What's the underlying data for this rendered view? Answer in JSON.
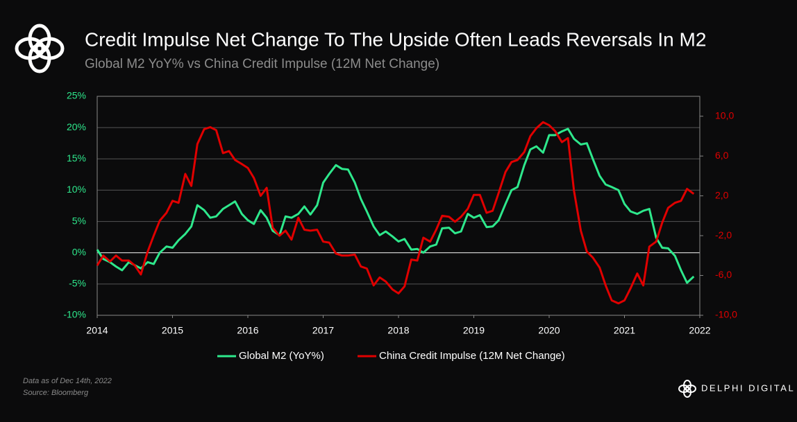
{
  "chart_data": {
    "type": "line",
    "title": "Credit Impulse Net Change To The Upside Often Leads Reversals In M2",
    "subtitle": "Global M2 YoY% vs China Credit Impulse (12M Net Change)",
    "x": [
      2014,
      2014.08,
      2014.17,
      2014.25,
      2014.33,
      2014.42,
      2014.5,
      2014.58,
      2014.67,
      2014.75,
      2014.83,
      2014.92,
      2015,
      2015.08,
      2015.17,
      2015.25,
      2015.33,
      2015.42,
      2015.5,
      2015.58,
      2015.67,
      2015.75,
      2015.83,
      2015.92,
      2016,
      2016.08,
      2016.17,
      2016.25,
      2016.33,
      2016.42,
      2016.5,
      2016.58,
      2016.67,
      2016.75,
      2016.83,
      2016.92,
      2017,
      2017.08,
      2017.17,
      2017.25,
      2017.33,
      2017.42,
      2017.5,
      2017.58,
      2017.67,
      2017.75,
      2017.83,
      2017.92,
      2018,
      2018.08,
      2018.17,
      2018.25,
      2018.33,
      2018.42,
      2018.5,
      2018.58,
      2018.67,
      2018.75,
      2018.83,
      2018.92,
      2019,
      2019.08,
      2019.17,
      2019.25,
      2019.33,
      2019.42,
      2019.5,
      2019.58,
      2019.67,
      2019.75,
      2019.83,
      2019.92,
      2020,
      2020.08,
      2020.17,
      2020.25,
      2020.33,
      2020.42,
      2020.5,
      2020.58,
      2020.67,
      2020.75,
      2020.83,
      2020.92,
      2021,
      2021.08,
      2021.17,
      2021.25,
      2021.33,
      2021.42,
      2021.5,
      2021.58,
      2021.67,
      2021.75,
      2021.83,
      2021.92
    ],
    "series": [
      {
        "name": "Global M2 (YoY%)",
        "color": "#2ee88c",
        "axis": "y",
        "values": [
          0.5,
          -1,
          -1.5,
          -2.2,
          -2.8,
          -1.5,
          -2,
          -2.5,
          -1.5,
          -1.8,
          0,
          1,
          0.8,
          2,
          3,
          4.2,
          7.6,
          6.8,
          5.6,
          5.8,
          7,
          7.6,
          8.2,
          6.2,
          5.2,
          4.6,
          6.8,
          5.6,
          3.5,
          2.8,
          5.8,
          5.6,
          6.2,
          7.4,
          6.1,
          7.6,
          11.2,
          12.6,
          14,
          13.4,
          13.3,
          11.2,
          8.6,
          6.6,
          4.2,
          2.8,
          3.4,
          2.6,
          1.8,
          2.2,
          0.5,
          0.6,
          0,
          1,
          1.3,
          3.9,
          4,
          3.1,
          3.4,
          6.2,
          5.6,
          6,
          4.1,
          4.2,
          5.2,
          7.8,
          10,
          10.5,
          14,
          16.5,
          17,
          16,
          18.8,
          18.8,
          19.4,
          19.8,
          18.2,
          17.3,
          17.5,
          15,
          12.3,
          10.9,
          10.5,
          10,
          7.8,
          6.6,
          6.2,
          6.7,
          7,
          2.4,
          0.8,
          0.7,
          -0.5,
          -2.8,
          -4.8,
          -3.8
        ]
      },
      {
        "name": "China Credit Impulse (12M Net Change)",
        "color": "#e00000",
        "axis": "y2",
        "values": [
          -5,
          -4,
          -4.6,
          -4,
          -4.5,
          -4.5,
          -5,
          -5.9,
          -3.6,
          -2,
          -0.5,
          0.3,
          1.5,
          1.3,
          4.2,
          3,
          7.2,
          8.7,
          8.9,
          8.6,
          6.3,
          6.5,
          5.6,
          5.2,
          4.8,
          3.8,
          2,
          2.8,
          -1.2,
          -2,
          -1.5,
          -2.4,
          -0.2,
          -1.4,
          -1.5,
          -1.4,
          -2.6,
          -2.7,
          -3.8,
          -4,
          -4,
          -3.9,
          -5.1,
          -5.3,
          -7,
          -6.2,
          -6.6,
          -7.4,
          -7.8,
          -7.1,
          -4.4,
          -4.5,
          -2.2,
          -2.6,
          -1.4,
          0,
          -0.1,
          -0.6,
          -0.1,
          0.7,
          2.1,
          2.1,
          0.3,
          0.5,
          2.3,
          4.4,
          5.4,
          5.6,
          6.4,
          8,
          8.8,
          9.4,
          9.1,
          8.5,
          7.4,
          7.8,
          2.5,
          -1.5,
          -3.6,
          -4.2,
          -5.2,
          -7,
          -8.5,
          -8.8,
          -8.5,
          -7.3,
          -5.8,
          -7,
          -3.1,
          -2.6,
          -0.7,
          0.8,
          1.3,
          1.5,
          2.7,
          2.2
        ]
      }
    ],
    "xlim": [
      2014,
      2022
    ],
    "xticks": [
      2014,
      2015,
      2016,
      2017,
      2018,
      2019,
      2020,
      2021,
      2022
    ],
    "ylim": [
      -10,
      25
    ],
    "yticks": [
      {
        "value": -10,
        "label": "-10%"
      },
      {
        "value": -5,
        "label": "-5%"
      },
      {
        "value": 0,
        "label": "0%"
      },
      {
        "value": 5,
        "label": "5%"
      },
      {
        "value": 10,
        "label": "10%"
      },
      {
        "value": 15,
        "label": "15%"
      },
      {
        "value": 20,
        "label": "20%"
      },
      {
        "value": 25,
        "label": "25%"
      }
    ],
    "y2lim": [
      -10,
      12
    ],
    "y2ticks": [
      {
        "value": -10,
        "label": "-10,0"
      },
      {
        "value": -6,
        "label": "-6,0"
      },
      {
        "value": -2,
        "label": "-2,0"
      },
      {
        "value": 2,
        "label": "2,0"
      },
      {
        "value": 6,
        "label": "6,0"
      },
      {
        "value": 10,
        "label": "10,0"
      }
    ],
    "grid": true,
    "legend": "bottom",
    "notes": [
      "Data as of Dec 14th, 2022",
      "Source: Bloomberg"
    ],
    "brand": "DELPHI DIGITAL"
  }
}
